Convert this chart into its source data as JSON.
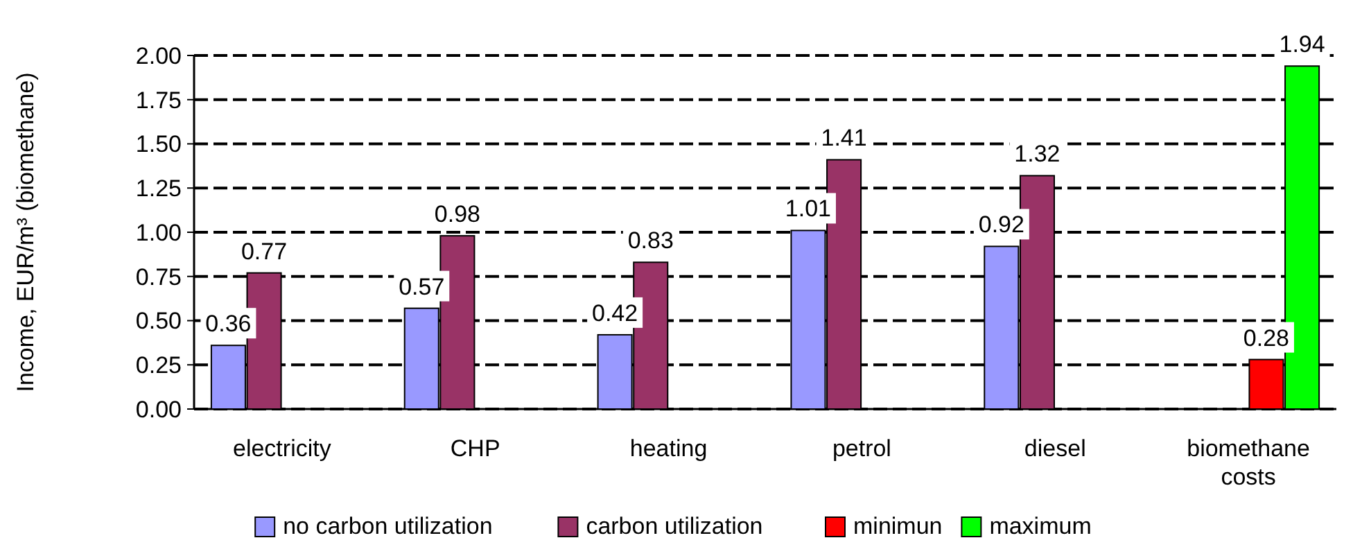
{
  "chart_data": {
    "type": "bar",
    "ylabel": "Income, EUR/m³ (biomethane)",
    "categories": [
      "electricity",
      "CHP",
      "heating",
      "petrol",
      "diesel",
      "biomethane costs"
    ],
    "series": [
      {
        "name": "no carbon utilization",
        "color": "#9999ff",
        "values": [
          0.36,
          0.57,
          0.42,
          1.01,
          0.92,
          null
        ]
      },
      {
        "name": "carbon utilization",
        "color": "#993366",
        "values": [
          0.77,
          0.98,
          0.83,
          1.41,
          1.32,
          null
        ]
      },
      {
        "name": "minimun",
        "color": "#ff0000",
        "values": [
          null,
          null,
          null,
          null,
          null,
          0.28
        ]
      },
      {
        "name": "maximum",
        "color": "#00ff00",
        "values": [
          null,
          null,
          null,
          null,
          null,
          1.94
        ]
      }
    ],
    "ylim": [
      0,
      2
    ],
    "yticks": [
      {
        "value": 0,
        "label": "0.00"
      },
      {
        "value": 0.25,
        "label": "0.25"
      },
      {
        "value": 0.5,
        "label": "0.50"
      },
      {
        "value": 0.75,
        "label": "0.75"
      },
      {
        "value": 1,
        "label": "1.00"
      },
      {
        "value": 1.25,
        "label": "1.25"
      },
      {
        "value": 1.5,
        "label": "1.50"
      },
      {
        "value": 1.75,
        "label": "1.75"
      },
      {
        "value": 2,
        "label": "2.00"
      }
    ],
    "grid": "y",
    "line_style": "dashed",
    "data_labels": true,
    "legend": "bottom"
  }
}
